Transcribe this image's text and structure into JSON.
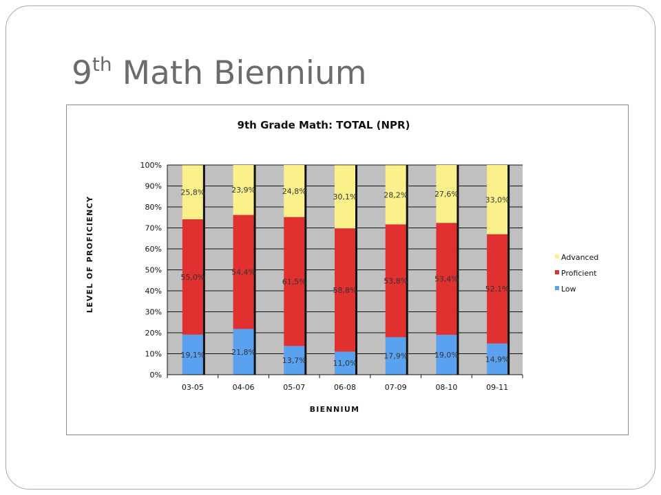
{
  "slide": {
    "title_main": "9",
    "title_sup": "th",
    "title_rest": " Math Biennium"
  },
  "chart_data": {
    "type": "bar",
    "stacked": true,
    "title": "9th Grade Math:  TOTAL (NPR)",
    "xlabel": "BIENNIUM",
    "ylabel": "LEVEL OF PROFICIENCY",
    "categories": [
      "03-05",
      "04-06",
      "05-07",
      "06-08",
      "07-09",
      "08-10",
      "09-11"
    ],
    "ylim": [
      0,
      100
    ],
    "yticks": [
      "0%",
      "10%",
      "20%",
      "30%",
      "40%",
      "50%",
      "60%",
      "70%",
      "80%",
      "90%",
      "100%"
    ],
    "grid": true,
    "legend_position": "right",
    "series": [
      {
        "name": "Low",
        "color": "#5aa2f0",
        "values": [
          19.1,
          21.8,
          13.7,
          11.0,
          17.9,
          19.0,
          14.9
        ],
        "labels": [
          "19,1%",
          "21,8%",
          "13,7%",
          "11,0%",
          "17,9%",
          "19,0%",
          "14,9%"
        ]
      },
      {
        "name": "Proficient",
        "color": "#e03030",
        "values": [
          55.0,
          54.4,
          61.5,
          58.8,
          53.8,
          53.4,
          52.1
        ],
        "labels": [
          "55,0%",
          "54,4%",
          "61,5%",
          "58,8%",
          "53,8%",
          "53,4%",
          "52,1%"
        ]
      },
      {
        "name": "Advanced",
        "color": "#fbf089",
        "values": [
          25.8,
          23.9,
          24.8,
          30.1,
          28.2,
          27.6,
          33.0
        ],
        "labels": [
          "25,8%",
          "23,9%",
          "24,8%",
          "30,1%",
          "28,2%",
          "27,6%",
          "33,0%"
        ]
      }
    ],
    "legend_order": [
      "Advanced",
      "Proficient",
      "Low"
    ],
    "plot_background": "#c0c0c0"
  }
}
